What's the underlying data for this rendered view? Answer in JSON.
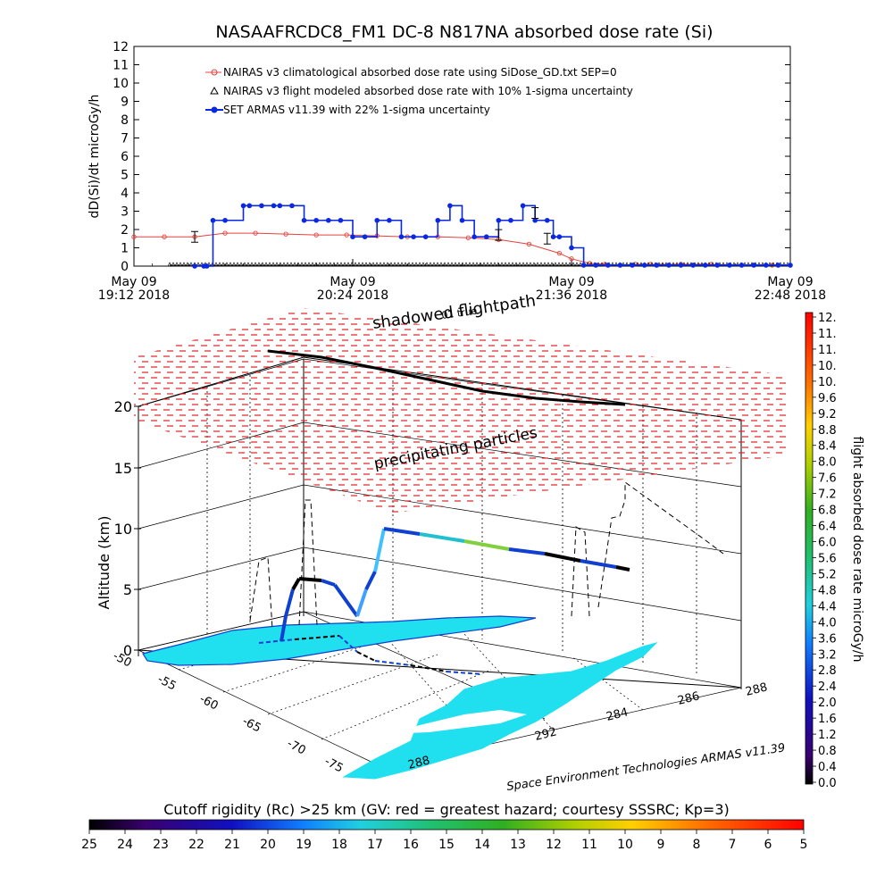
{
  "title": "NASAAFRCDC8_FM1 DC-8    N817NA absorbed dose rate (Si)",
  "chart_data": [
    {
      "type": "line",
      "ylabel": "dD(Si)/dt microGy/h",
      "ylim": [
        0,
        12
      ],
      "y_ticks": [
        "0",
        "1",
        "2",
        "3",
        "4",
        "5",
        "6",
        "7",
        "8",
        "9",
        "10",
        "11",
        "12"
      ],
      "x_ticks": [
        {
          "line1": "May 09",
          "line2": "19:12 2018"
        },
        {
          "line1": "May 09",
          "line2": "20:24 2018"
        },
        {
          "line1": "May 09",
          "line2": "21:36 2018"
        },
        {
          "line1": "May 09",
          "line2": "22:48 2018"
        }
      ],
      "x_start_min": 0,
      "x_end_min": 216,
      "legend": [
        "NAIRAS v3 climatological absorbed dose rate using SiDose_GD.txt SEP=0",
        "NAIRAS v3 flight modeled absorbed dose rate with 10% 1-sigma uncertainty",
        "SET ARMAS v11.39 with 22% 1-sigma uncertainty"
      ],
      "series": [
        {
          "name": "NAIRAS v3 climatological absorbed dose rate using SiDose_GD.txt SEP=0",
          "color": "#e8403c",
          "x": [
            0,
            10,
            20,
            30,
            40,
            50,
            60,
            70,
            80,
            90,
            100,
            110,
            120,
            130,
            140,
            144,
            150,
            155,
            160,
            165,
            170,
            180,
            190,
            200,
            210,
            216
          ],
          "y": [
            1.6,
            1.6,
            1.6,
            1.8,
            1.8,
            1.75,
            1.7,
            1.7,
            1.65,
            1.6,
            1.6,
            1.55,
            1.45,
            1.2,
            0.7,
            0.4,
            0.15,
            0.1,
            0.05,
            0.1,
            0.1,
            0.1,
            0.1,
            0.05,
            0.05,
            0.05
          ]
        },
        {
          "name": "NAIRAS v3 flight modeled absorbed dose rate with 10% 1-sigma uncertainty",
          "color": "#000000",
          "x": [
            20,
            144
          ],
          "y": [
            0.05,
            0.05
          ]
        },
        {
          "name": "SET ARMAS v11.39 with 22% 1-sigma uncertainty",
          "color": "#0a28e0",
          "x": [
            20,
            23,
            24,
            26,
            30,
            36,
            38,
            42,
            46,
            48,
            52,
            56,
            60,
            64,
            68,
            72,
            76,
            80,
            84,
            88,
            92,
            96,
            100,
            104,
            108,
            112,
            116,
            120,
            124,
            128,
            132,
            136,
            138,
            140,
            144,
            148,
            152,
            156,
            160,
            164,
            168,
            172,
            176,
            180,
            184,
            188,
            192,
            196,
            200,
            204,
            208,
            212,
            216
          ],
          "y": [
            0,
            0,
            0,
            2.5,
            2.5,
            3.3,
            3.3,
            3.3,
            3.3,
            3.3,
            3.3,
            2.5,
            2.5,
            2.5,
            2.5,
            1.6,
            1.6,
            2.5,
            2.5,
            1.6,
            1.6,
            1.6,
            2.5,
            3.3,
            2.5,
            1.6,
            1.6,
            2.5,
            2.5,
            3.3,
            2.5,
            2.5,
            1.6,
            1.6,
            1.0,
            0.05,
            0.05,
            0.05,
            0.05,
            0.05,
            0.05,
            0.05,
            0.05,
            0.05,
            0.05,
            0.05,
            0.05,
            0.05,
            0.05,
            0.05,
            0.05,
            0.05,
            0.05
          ]
        }
      ]
    },
    {
      "type": "3d-surface",
      "annotations": [
        "shadowed flightpath",
        "precipitating particles"
      ],
      "overlay_top_label": "01 true",
      "zlabel": "Altitude (km)",
      "z_ticks": [
        "0",
        "5",
        "10",
        "15",
        "20"
      ],
      "lat_ticks": [
        "-50",
        "-55",
        "-60",
        "-65",
        "-70",
        "-75"
      ],
      "lon_ticks": [
        "288",
        "292",
        "284",
        "286",
        "288"
      ],
      "credit": "Space Environment Technologies ARMAS v11.39",
      "flight_altitude_km": [
        0.3,
        3,
        6,
        6.5,
        7,
        9,
        11,
        11,
        10.8,
        10.6,
        10.4,
        10.3,
        10.1,
        10,
        9.8,
        9.6,
        9.5
      ],
      "flight_dose_color": [
        "#1040d0",
        "#1040d0",
        "#000000",
        "#000000",
        "#1040d0",
        "#1040d0",
        "#40a0ff",
        "#1040d0",
        "#40c0ff",
        "#1040d0",
        "#20c0d0",
        "#80d040",
        "#1040d0",
        "#000000",
        "#1040d0",
        "#000000",
        "#000000"
      ]
    },
    {
      "type": "heatmap",
      "name": "flight absorbed dose rate colorbar",
      "label": "flight absorbed dose rate microGy/h",
      "range": [
        0.0,
        12.0
      ],
      "tick_labels": [
        "12.",
        "11.",
        "11.",
        "10.",
        "10.",
        "9.6",
        "9.2",
        "8.8",
        "8.4",
        "8.0",
        "7.6",
        "7.2",
        "6.8",
        "6.4",
        "6.0",
        "5.6",
        "5.2",
        "4.8",
        "4.4",
        "4.0",
        "3.6",
        "3.2",
        "2.8",
        "2.4",
        "2.0",
        "1.6",
        "1.2",
        "0.8",
        "0.4",
        "0.0"
      ]
    },
    {
      "type": "heatmap",
      "name": "cutoff rigidity colorbar",
      "title": "Cutoff rigidity (Rc) >25 km (GV: red = greatest hazard; courtesy SSSRC; Kp=3)",
      "range": [
        25,
        5
      ],
      "tick_labels": [
        "25",
        "24",
        "23",
        "22",
        "21",
        "20",
        "19",
        "18",
        "17",
        "16",
        "15",
        "14",
        "13",
        "12",
        "11",
        "10",
        "9",
        "8",
        "7",
        "6",
        "5"
      ]
    }
  ]
}
